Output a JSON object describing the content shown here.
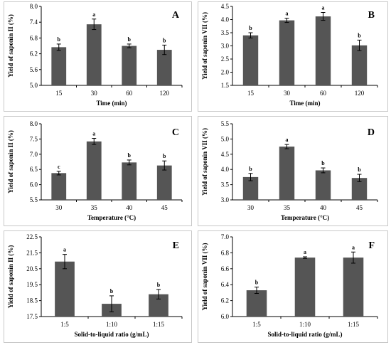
{
  "chart_data": [
    {
      "panel_label": "A",
      "type": "bar",
      "categories": [
        "15",
        "30",
        "60",
        "120"
      ],
      "values": [
        6.45,
        7.32,
        6.5,
        6.35
      ],
      "errors": [
        0.12,
        0.2,
        0.07,
        0.18
      ],
      "significance": [
        "b",
        "a",
        "b",
        "b"
      ],
      "ylabel": "Yield of saponin II (%)",
      "xlabel": "Time (min)",
      "ylim": [
        5.0,
        8.0
      ],
      "yticks": [
        "5.0",
        "5.6",
        "6.2",
        "6.8",
        "7.4",
        "8.0"
      ],
      "grid": false
    },
    {
      "panel_label": "B",
      "type": "bar",
      "categories": [
        "15",
        "30",
        "60",
        "120"
      ],
      "values": [
        3.4,
        3.97,
        4.12,
        3.02
      ],
      "errors": [
        0.1,
        0.08,
        0.15,
        0.2
      ],
      "significance": [
        "b",
        "a",
        "a",
        "b"
      ],
      "ylabel": "Yield of saponin VII (%)",
      "xlabel": "Time (min)",
      "ylim": [
        1.5,
        4.5
      ],
      "yticks": [
        "1.5",
        "2.0",
        "2.5",
        "3.0",
        "3.5",
        "4.0",
        "4.5"
      ],
      "grid": false
    },
    {
      "panel_label": "C",
      "type": "bar",
      "categories": [
        "30",
        "35",
        "40",
        "45"
      ],
      "values": [
        6.38,
        7.42,
        6.73,
        6.63
      ],
      "errors": [
        0.06,
        0.1,
        0.08,
        0.15
      ],
      "significance": [
        "c",
        "a",
        "b",
        "b"
      ],
      "ylabel": "Yield of saponin II (%)",
      "xlabel": "Temperature (°C)",
      "ylim": [
        5.5,
        8.0
      ],
      "yticks": [
        "5.5",
        "6.0",
        "6.5",
        "7.0",
        "7.5",
        "8.0"
      ],
      "grid": false
    },
    {
      "panel_label": "D",
      "type": "bar",
      "categories": [
        "30",
        "35",
        "40",
        "45"
      ],
      "values": [
        3.75,
        4.75,
        3.97,
        3.72
      ],
      "errors": [
        0.12,
        0.07,
        0.08,
        0.12
      ],
      "significance": [
        "b",
        "a",
        "b",
        "b"
      ],
      "ylabel": "Yield of saponin VII (%)",
      "xlabel": "Temperature (°C)",
      "ylim": [
        3.0,
        5.5
      ],
      "yticks": [
        "3.0",
        "3.5",
        "4.0",
        "4.5",
        "5.0",
        "5.5"
      ],
      "grid": false
    },
    {
      "panel_label": "E",
      "type": "bar",
      "categories": [
        "1:5",
        "1:10",
        "1:15"
      ],
      "values": [
        20.95,
        18.3,
        18.9
      ],
      "errors": [
        0.45,
        0.5,
        0.3
      ],
      "significance": [
        "a",
        "b",
        "b"
      ],
      "ylabel": "Yield of saponin II (%)",
      "xlabel": "Solid-to-liquid ratio (g/mL)",
      "ylim": [
        17.5,
        22.5
      ],
      "yticks": [
        "17.5",
        "18.5",
        "19.5",
        "20.5",
        "21.5",
        "22.5"
      ],
      "grid": false
    },
    {
      "panel_label": "F",
      "type": "bar",
      "categories": [
        "1:5",
        "1:10",
        "1:15"
      ],
      "values": [
        6.33,
        6.74,
        6.74
      ],
      "errors": [
        0.04,
        0.01,
        0.07
      ],
      "significance": [
        "b",
        "a",
        "a"
      ],
      "ylabel": "Yield of saponin VII (%)",
      "xlabel": "Solid-to-liquid ratio (g/mL)",
      "ylim": [
        6.0,
        7.0
      ],
      "yticks": [
        "6.0",
        "6.2",
        "6.4",
        "6.6",
        "6.8",
        "7.0"
      ],
      "grid": false
    }
  ]
}
